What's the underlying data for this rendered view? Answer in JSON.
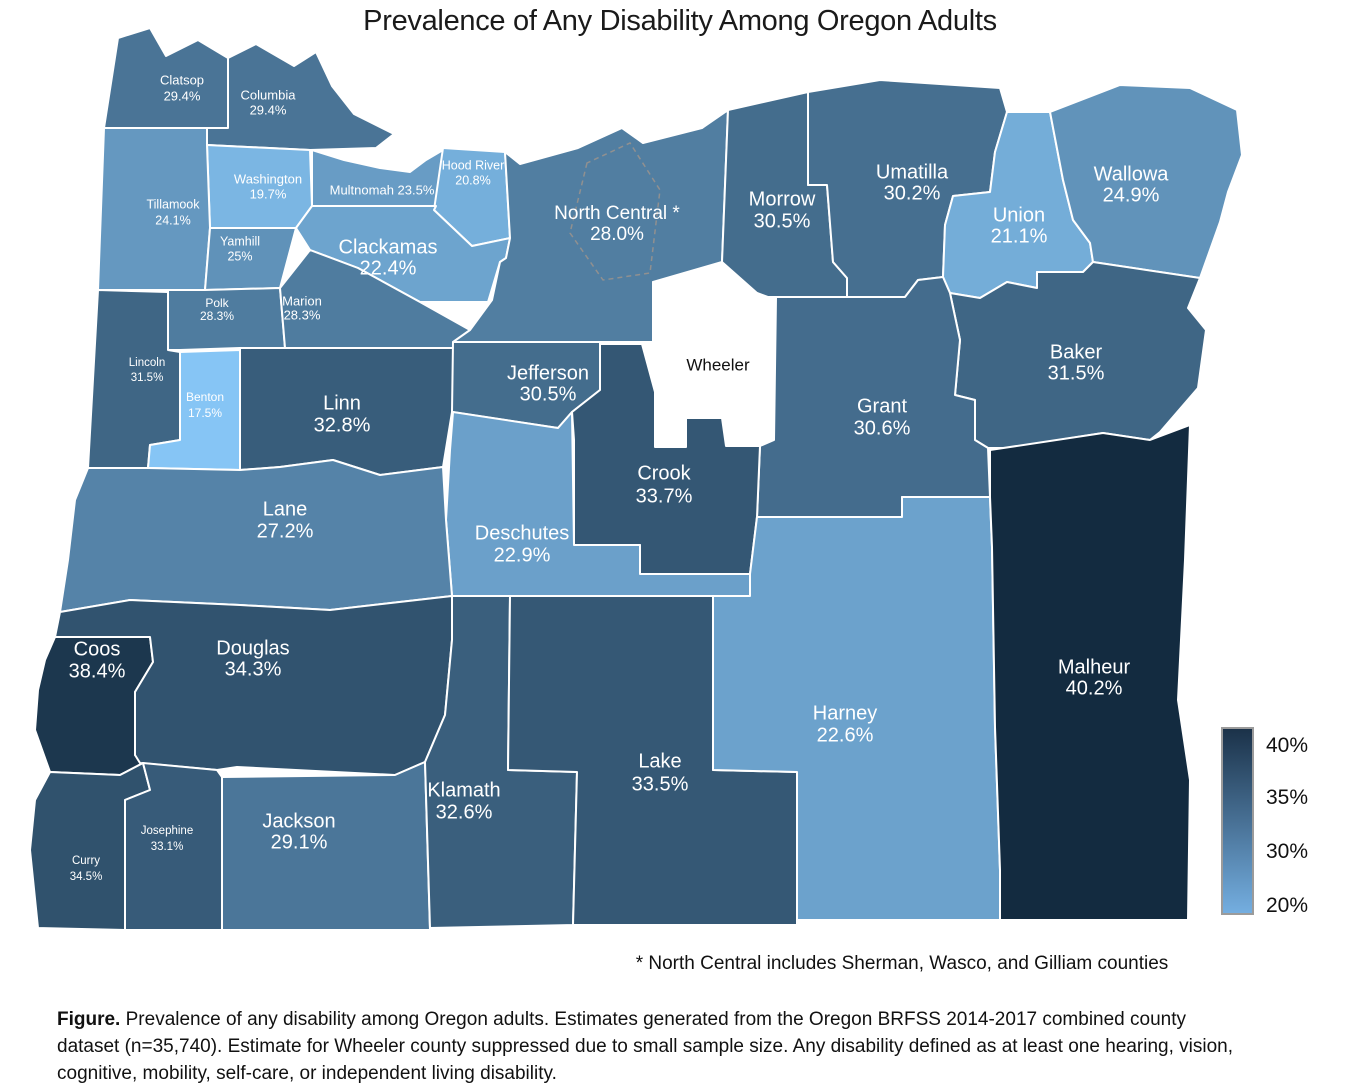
{
  "title": "Prevalence of Any Disability Among Oregon Adults",
  "map": {
    "footnote": "* North Central includes Sherman, Wasco, and Gilliam counties",
    "suppressed_county": "Wheeler"
  },
  "legend": {
    "tick_labels": [
      "40%",
      "35%",
      "30%",
      "20%"
    ],
    "top_color": "#1b3249",
    "bottom_color": "#74aee0",
    "border_color": "#9b9b9b"
  },
  "color_scale": {
    "min_value": 17.5,
    "max_value": 40.2,
    "min_color": "#86C5F5",
    "max_color": "#132B40",
    "suppressed_color": "#FFFFFF"
  },
  "caption": {
    "label": "Figure.",
    "text": " Prevalence of any disability among Oregon adults. Estimates generated from the Oregon BRFSS 2014-2017 combined county dataset (n=35,740). Estimate for Wheeler county suppressed due to small sample size. Any disability defined as at least one hearing, vision, cognitive, mobility, self-care, or independent living disability."
  },
  "chart_data": {
    "type": "choropleth",
    "region": "Oregon counties",
    "title": "Prevalence of Any Disability Among Oregon Adults",
    "unit": "percent",
    "value_range_legend": [
      20,
      40
    ],
    "counties": [
      {
        "name": "Clatsop",
        "value": 29.4,
        "display": "29.4%"
      },
      {
        "name": "Columbia",
        "value": 29.4,
        "display": "29.4%"
      },
      {
        "name": "Washington",
        "value": 19.7,
        "display": "19.7%"
      },
      {
        "name": "Multnomah",
        "value": 23.5,
        "display": "23.5%"
      },
      {
        "name": "Hood River",
        "value": 20.8,
        "display": "20.8%"
      },
      {
        "name": "Tillamook",
        "value": 24.1,
        "display": "24.1%"
      },
      {
        "name": "Yamhill",
        "value": 25,
        "display": "25%"
      },
      {
        "name": "Clackamas",
        "value": 22.4,
        "display": "22.4%"
      },
      {
        "name": "Polk",
        "value": 28.3,
        "display": "28.3%"
      },
      {
        "name": "Marion",
        "value": 28.3,
        "display": "28.3%"
      },
      {
        "name": "Lincoln",
        "value": 31.5,
        "display": "31.5%"
      },
      {
        "name": "Benton",
        "value": 17.5,
        "display": "17.5%"
      },
      {
        "name": "Linn",
        "value": 32.8,
        "display": "32.8%"
      },
      {
        "name": "North Central *",
        "value": 28.0,
        "display": "28.0%",
        "note": "includes Sherman, Wasco, and Gilliam counties"
      },
      {
        "name": "Morrow",
        "value": 30.5,
        "display": "30.5%"
      },
      {
        "name": "Umatilla",
        "value": 30.2,
        "display": "30.2%"
      },
      {
        "name": "Union",
        "value": 21.1,
        "display": "21.1%"
      },
      {
        "name": "Wallowa",
        "value": 24.9,
        "display": "24.9%"
      },
      {
        "name": "Baker",
        "value": 31.5,
        "display": "31.5%"
      },
      {
        "name": "Wheeler",
        "value": null,
        "display": "",
        "suppressed": true
      },
      {
        "name": "Jefferson",
        "value": 30.5,
        "display": "30.5%"
      },
      {
        "name": "Grant",
        "value": 30.6,
        "display": "30.6%"
      },
      {
        "name": "Crook",
        "value": 33.7,
        "display": "33.7%"
      },
      {
        "name": "Deschutes",
        "value": 22.9,
        "display": "22.9%"
      },
      {
        "name": "Lane",
        "value": 27.2,
        "display": "27.2%"
      },
      {
        "name": "Coos",
        "value": 38.4,
        "display": "38.4%"
      },
      {
        "name": "Douglas",
        "value": 34.3,
        "display": "34.3%"
      },
      {
        "name": "Curry",
        "value": 34.5,
        "display": "34.5%"
      },
      {
        "name": "Josephine",
        "value": 33.1,
        "display": "33.1%"
      },
      {
        "name": "Jackson",
        "value": 29.1,
        "display": "29.1%"
      },
      {
        "name": "Klamath",
        "value": 32.6,
        "display": "32.6%"
      },
      {
        "name": "Lake",
        "value": 33.5,
        "display": "33.5%"
      },
      {
        "name": "Harney",
        "value": 22.6,
        "display": "22.6%"
      },
      {
        "name": "Malheur",
        "value": 40.2,
        "display": "40.2%"
      }
    ]
  }
}
